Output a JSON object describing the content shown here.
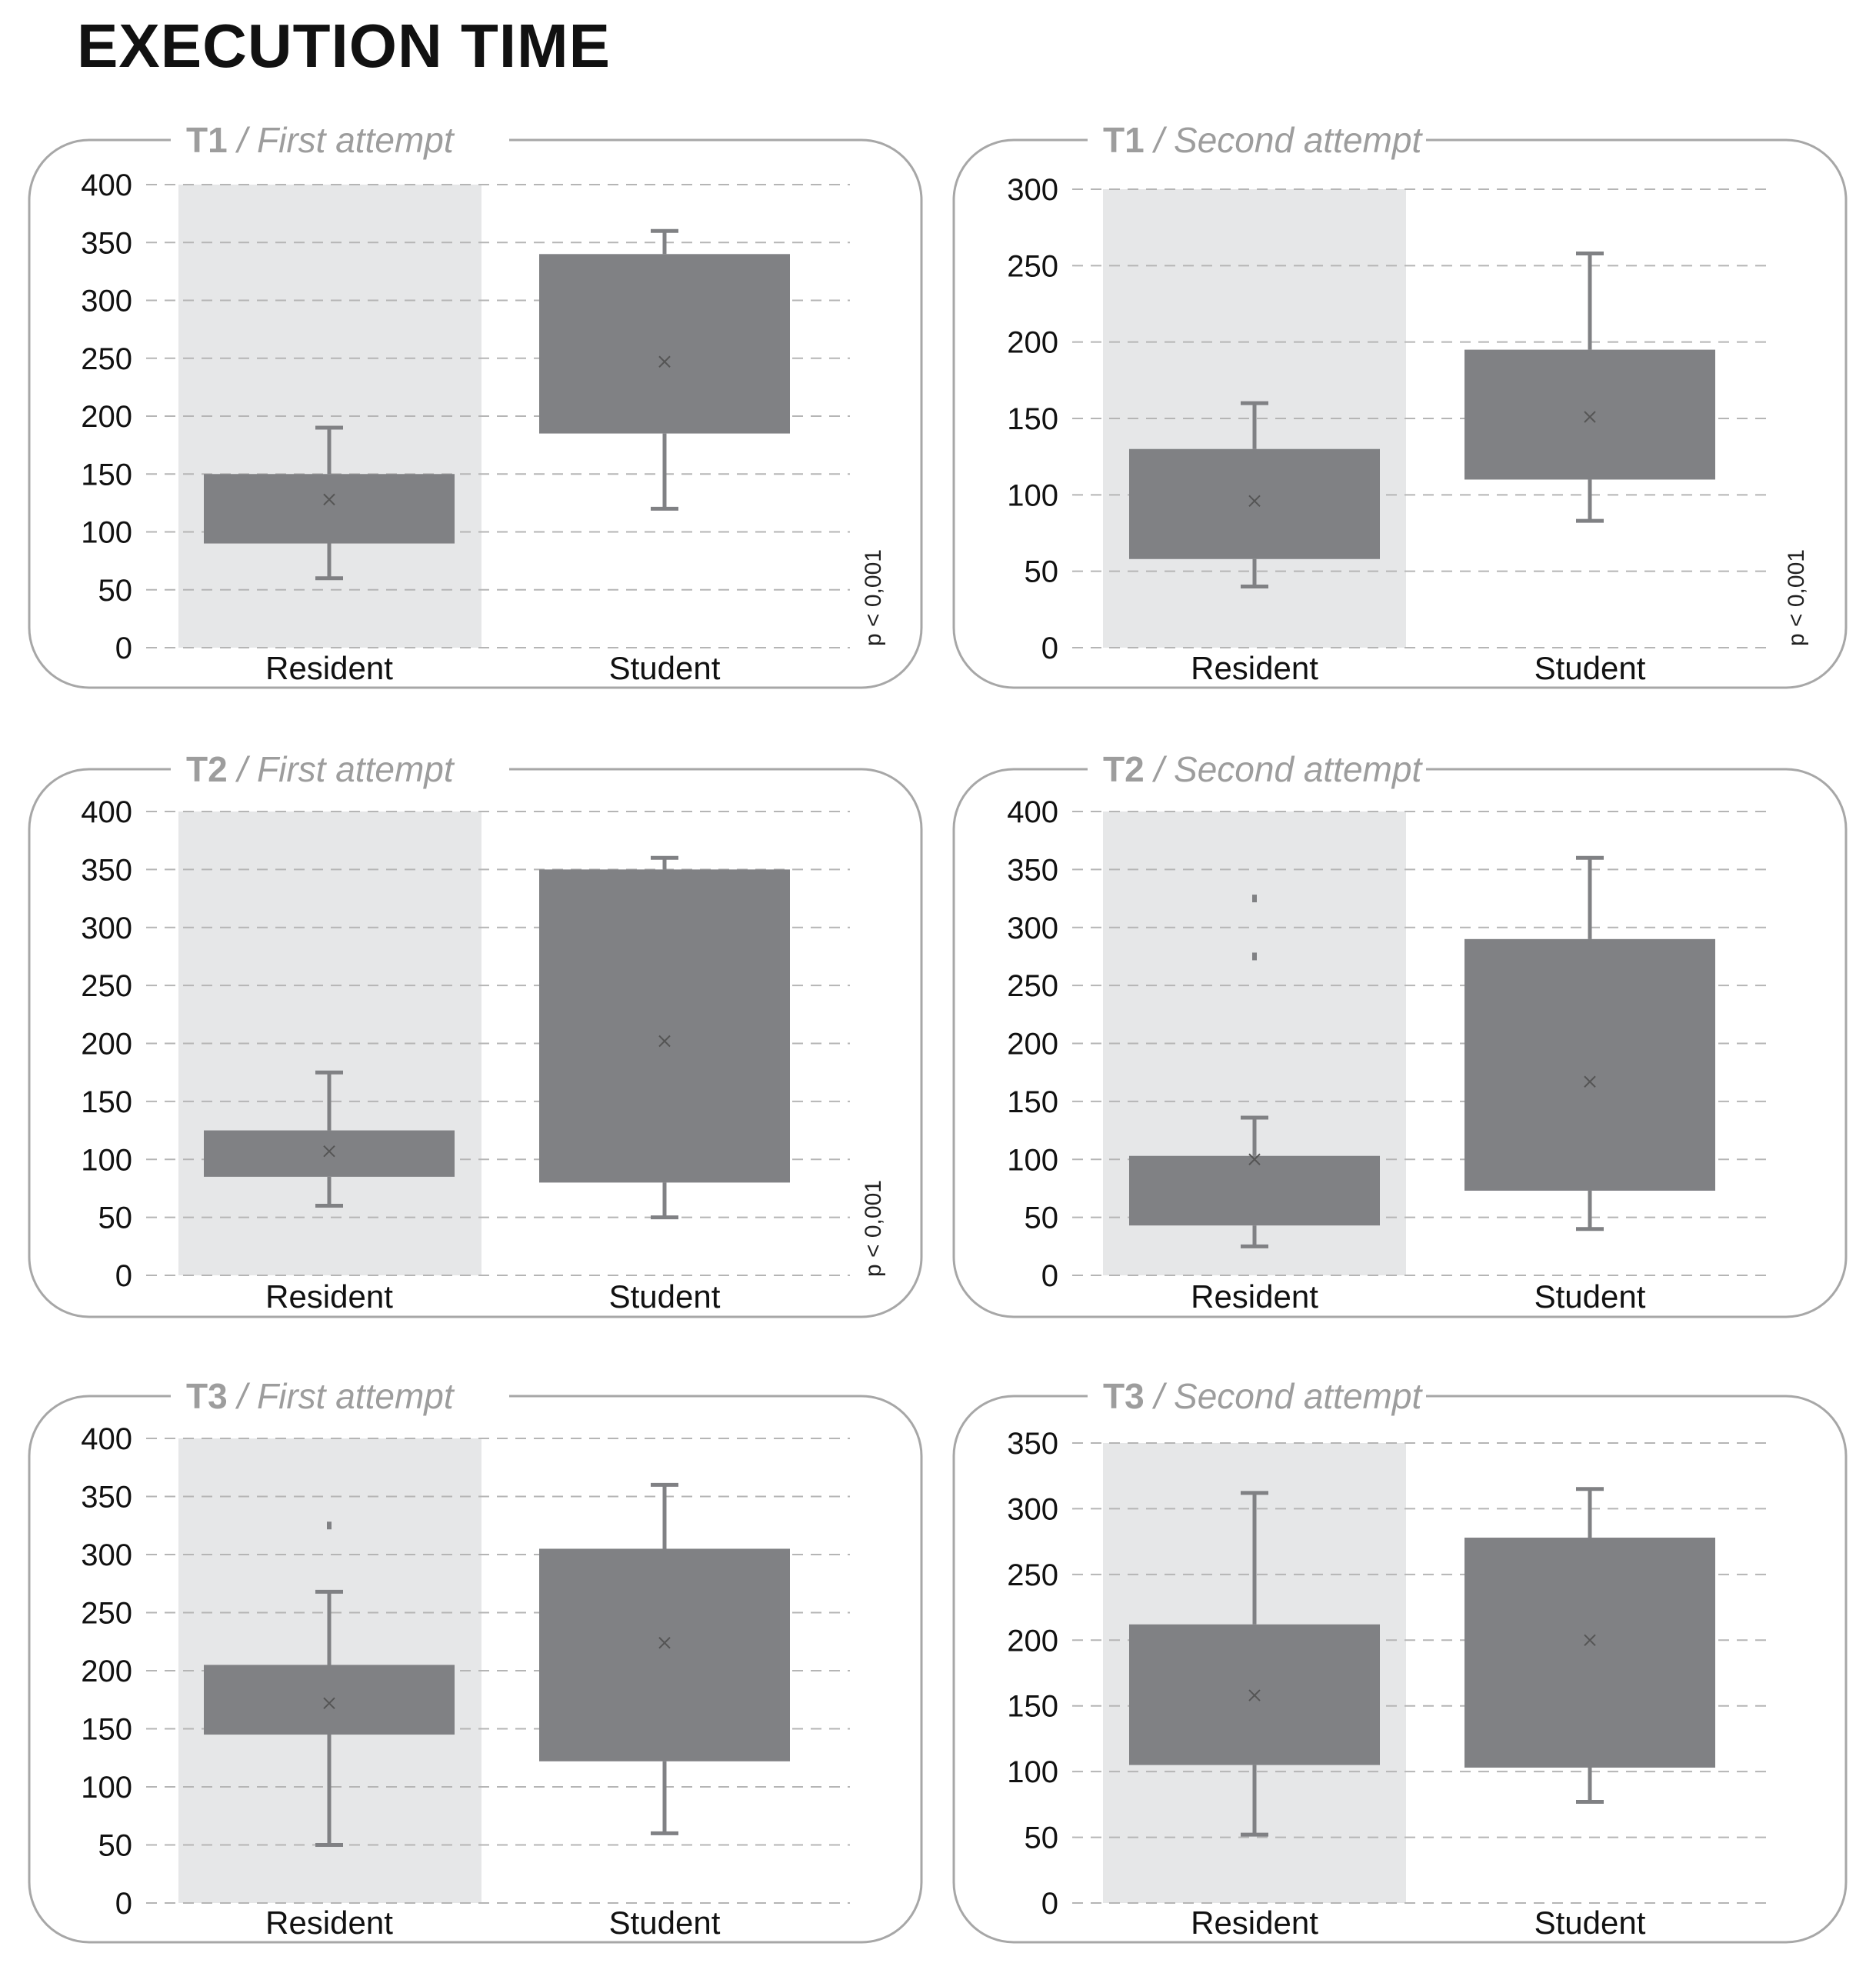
{
  "title": "EXECUTION TIME",
  "colors": {
    "box": "#808184",
    "shade": "#e6e7e8",
    "grid": "#b5b5b5",
    "frame": "#a7a7a7",
    "mean": "#555555",
    "header": "#9d9d9d"
  },
  "chart_data": [
    {
      "type": "boxplot",
      "id": "T1",
      "task": "T1",
      "attempt": "First attempt",
      "ylim": [
        0,
        400
      ],
      "yticks": [
        0,
        50,
        100,
        150,
        200,
        250,
        300,
        350,
        400
      ],
      "categories": [
        "Resident",
        "Student"
      ],
      "series": [
        {
          "name": "Resident",
          "min": 60,
          "q1": 90,
          "q3": 150,
          "max": 190,
          "mean": 128,
          "outliers": []
        },
        {
          "name": "Student",
          "min": 120,
          "q1": 185,
          "q3": 340,
          "max": 360,
          "mean": 247,
          "outliers": []
        }
      ],
      "annotation": "p < 0,001"
    },
    {
      "type": "boxplot",
      "id": "T1b",
      "task": "T1",
      "attempt": "Second attempt",
      "ylim": [
        0,
        300
      ],
      "yticks": [
        0,
        50,
        100,
        150,
        200,
        250,
        300
      ],
      "categories": [
        "Resident",
        "Student"
      ],
      "series": [
        {
          "name": "Resident",
          "min": 40,
          "q1": 58,
          "q3": 130,
          "max": 160,
          "mean": 96,
          "outliers": []
        },
        {
          "name": "Student",
          "min": 83,
          "q1": 110,
          "q3": 195,
          "max": 258,
          "mean": 151,
          "outliers": []
        }
      ],
      "annotation": "p < 0,001"
    },
    {
      "type": "boxplot",
      "id": "T2",
      "task": "T2",
      "attempt": "First attempt",
      "ylim": [
        0,
        400
      ],
      "yticks": [
        0,
        50,
        100,
        150,
        200,
        250,
        300,
        350,
        400
      ],
      "categories": [
        "Resident",
        "Student"
      ],
      "series": [
        {
          "name": "Resident",
          "min": 60,
          "q1": 85,
          "q3": 125,
          "max": 175,
          "mean": 107,
          "outliers": []
        },
        {
          "name": "Student",
          "min": 50,
          "q1": 80,
          "q3": 350,
          "max": 360,
          "mean": 202,
          "outliers": []
        }
      ],
      "annotation": "p < 0,001"
    },
    {
      "type": "boxplot",
      "id": "T2b",
      "task": "T2",
      "attempt": "Second attempt",
      "ylim": [
        0,
        400
      ],
      "yticks": [
        0,
        50,
        100,
        150,
        200,
        250,
        300,
        350,
        400
      ],
      "categories": [
        "Resident",
        "Student"
      ],
      "series": [
        {
          "name": "Resident",
          "min": 25,
          "q1": 43,
          "q3": 103,
          "max": 136,
          "mean": 100,
          "outliers": [
            325,
            275
          ]
        },
        {
          "name": "Student",
          "min": 40,
          "q1": 73,
          "q3": 290,
          "max": 360,
          "mean": 167,
          "outliers": []
        }
      ],
      "annotation": ""
    },
    {
      "type": "boxplot",
      "id": "T3",
      "task": "T3",
      "attempt": "First attempt",
      "ylim": [
        0,
        400
      ],
      "yticks": [
        0,
        50,
        100,
        150,
        200,
        250,
        300,
        350,
        400
      ],
      "categories": [
        "Resident",
        "Student"
      ],
      "series": [
        {
          "name": "Resident",
          "min": 50,
          "q1": 145,
          "q3": 205,
          "max": 268,
          "mean": 172,
          "outliers": [
            325
          ]
        },
        {
          "name": "Student",
          "min": 60,
          "q1": 122,
          "q3": 305,
          "max": 360,
          "mean": 224,
          "outliers": []
        }
      ],
      "annotation": ""
    },
    {
      "type": "boxplot",
      "id": "T3b",
      "task": "T3",
      "attempt": "Second attempt",
      "ylim": [
        0,
        350
      ],
      "yticks": [
        0,
        50,
        100,
        150,
        200,
        250,
        300,
        350
      ],
      "categories": [
        "Resident",
        "Student"
      ],
      "series": [
        {
          "name": "Resident",
          "min": 52,
          "q1": 105,
          "q3": 212,
          "max": 312,
          "mean": 158,
          "outliers": []
        },
        {
          "name": "Student",
          "min": 77,
          "q1": 103,
          "q3": 278,
          "max": 315,
          "mean": 200,
          "outliers": []
        }
      ],
      "annotation": ""
    }
  ]
}
